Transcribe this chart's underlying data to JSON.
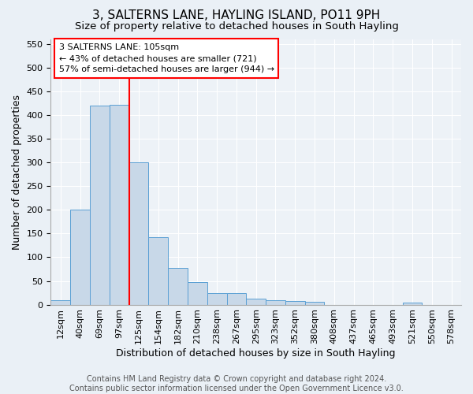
{
  "title": "3, SALTERNS LANE, HAYLING ISLAND, PO11 9PH",
  "subtitle": "Size of property relative to detached houses in South Hayling",
  "xlabel": "Distribution of detached houses by size in South Hayling",
  "ylabel": "Number of detached properties",
  "bar_color": "#c8d8e8",
  "bar_edge_color": "#5a9fd4",
  "bar_values": [
    10,
    200,
    420,
    422,
    300,
    143,
    78,
    48,
    24,
    24,
    12,
    10,
    8,
    6,
    0,
    0,
    0,
    0,
    4,
    0,
    0
  ],
  "categories": [
    "12sqm",
    "40sqm",
    "69sqm",
    "97sqm",
    "125sqm",
    "154sqm",
    "182sqm",
    "210sqm",
    "238sqm",
    "267sqm",
    "295sqm",
    "323sqm",
    "352sqm",
    "380sqm",
    "408sqm",
    "437sqm",
    "465sqm",
    "493sqm",
    "521sqm",
    "550sqm",
    "578sqm"
  ],
  "ylim": [
    0,
    560
  ],
  "yticks": [
    0,
    50,
    100,
    150,
    200,
    250,
    300,
    350,
    400,
    450,
    500,
    550
  ],
  "vline_x": 3.5,
  "annotation_box_text": "3 SALTERNS LANE: 105sqm\n← 43% of detached houses are smaller (721)\n57% of semi-detached houses are larger (944) →",
  "footer_text": "Contains HM Land Registry data © Crown copyright and database right 2024.\nContains public sector information licensed under the Open Government Licence v3.0.",
  "background_color": "#eaf0f6",
  "plot_bg_color": "#edf2f7",
  "grid_color": "#ffffff",
  "title_fontsize": 11,
  "subtitle_fontsize": 9.5,
  "xlabel_fontsize": 9,
  "ylabel_fontsize": 9,
  "tick_fontsize": 8,
  "footer_fontsize": 7
}
